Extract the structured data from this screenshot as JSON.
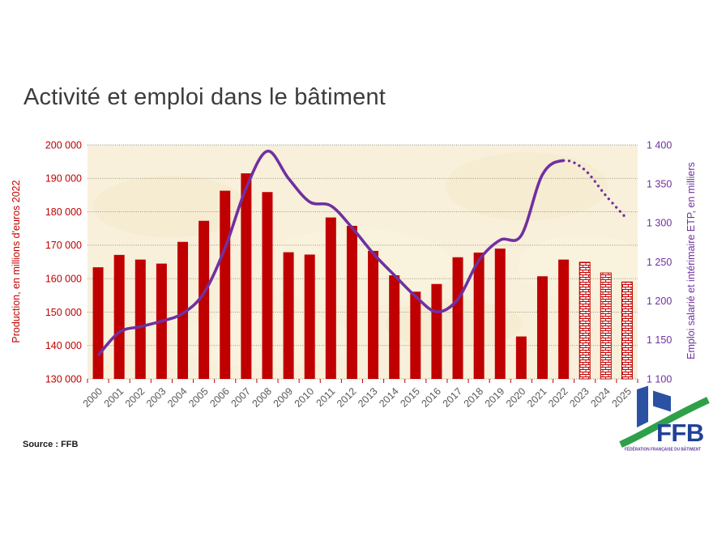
{
  "page": {
    "title": "Activité et emploi dans le bâtiment",
    "source": "Source : FFB"
  },
  "logo": {
    "text": "FFB",
    "caption": "FÉDÉRATION FRANÇAISE DU BÂTIMENT"
  },
  "chart_data": {
    "type": "bar",
    "subtype": "bar+line dual-axis, forecast years hatched/dotted",
    "title": "Activité et emploi dans le bâtiment",
    "categories": [
      "2000",
      "2001",
      "2002",
      "2003",
      "2004",
      "2005",
      "2006",
      "2007",
      "2008",
      "2009",
      "2010",
      "2011",
      "2012",
      "2013",
      "2014",
      "2015",
      "2016",
      "2017",
      "2018",
      "2019",
      "2020",
      "2021",
      "2022",
      "2023",
      "2024",
      "2025"
    ],
    "series": [
      {
        "name": "Production, en millions d'euros 2022",
        "type": "bar",
        "axis": "left",
        "color": "#C00000",
        "forecast_style": "hatched-outline",
        "forecast_start_index": 23,
        "values": [
          163400,
          167100,
          165700,
          164500,
          171000,
          177300,
          186300,
          191500,
          185900,
          167900,
          167200,
          178300,
          175800,
          168300,
          161000,
          156100,
          158400,
          166400,
          167800,
          169000,
          142700,
          160700,
          165700,
          164900,
          161700,
          159000
        ]
      },
      {
        "name": "Emploi salarié et intérimaire ETP, en milliers",
        "type": "line",
        "axis": "right",
        "color": "#7030A0",
        "forecast_style": "dotted",
        "forecast_start_index": 22,
        "values": [
          1130,
          1160,
          1167,
          1174,
          1184,
          1210,
          1268,
          1345,
          1392,
          1357,
          1327,
          1322,
          1294,
          1261,
          1233,
          1206,
          1186,
          1202,
          1252,
          1278,
          1284,
          1362,
          1380,
          1368,
          1335,
          1305
        ]
      }
    ],
    "left_axis": {
      "title": "Production, en millions d'euros 2022",
      "color": "#C00000",
      "min": 130000,
      "max": 200000,
      "tick_step": 10000,
      "tick_labels": [
        "130 000",
        "140 000",
        "150 000",
        "160 000",
        "170 000",
        "180 000",
        "190 000",
        "200 000"
      ]
    },
    "right_axis": {
      "title": "Emploi salarié et intérimaire ETP, en milliers",
      "color": "#7030A0",
      "min": 1100,
      "max": 1400,
      "tick_step": 50,
      "tick_labels": [
        "1 100",
        "1 150",
        "1 200",
        "1 250",
        "1 300",
        "1 350",
        "1 400"
      ]
    },
    "x_axis": {
      "label_color": "#595959",
      "tick_color": "#C00000"
    },
    "plot_background": "#F8F0DA",
    "gridlines": true,
    "legend": "none"
  }
}
